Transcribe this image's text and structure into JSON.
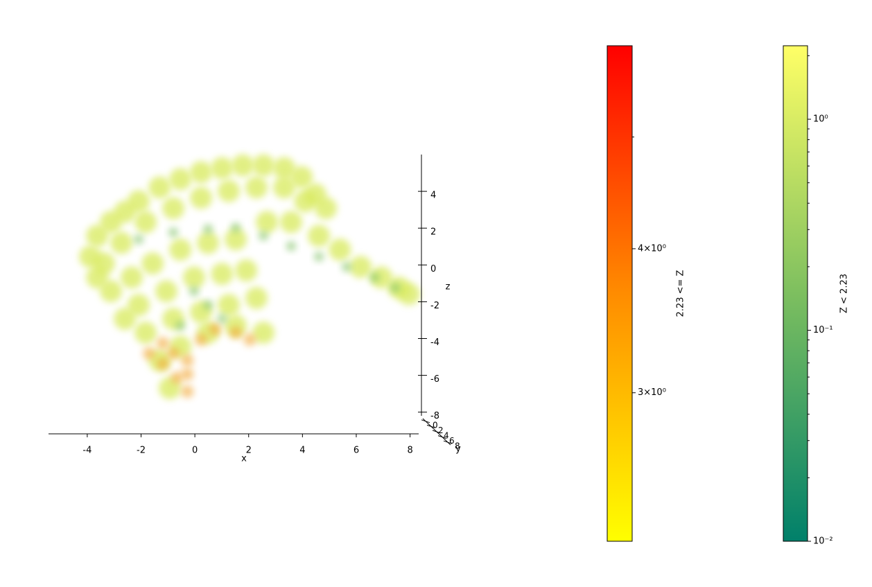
{
  "chart_data": [
    {
      "type": "scatter3d",
      "x_label": "x",
      "y_label": "y",
      "z_label": "z",
      "xlim": [
        -5.44,
        8.32
      ],
      "xticks": [
        -4,
        -2,
        0,
        2,
        4,
        6,
        8
      ],
      "zlim": [
        -8.2,
        6
      ],
      "zticks": [
        -8,
        -6,
        -4,
        -2,
        0,
        2,
        4
      ],
      "ylim": [
        -1,
        9
      ],
      "yticks": [
        0,
        2,
        4,
        6,
        8
      ],
      "series": [
        {
          "color": "#d8ea5c",
          "x": [
            -3.89,
            -3.63,
            -3.12,
            -2.6,
            -2.09,
            -1.31,
            -0.54,
            0.23,
            1.01,
            1.78,
            2.55,
            3.32,
            3.97,
            4.48,
            4.87,
            -3.38,
            -2.73,
            -1.83,
            -0.8,
            0.23,
            1.26,
            2.29,
            3.32,
            4.1,
            -3.12,
            -2.35,
            -1.57,
            -0.54,
            0.49,
            1.52,
            -2.09,
            -1.06,
            -0.03,
            1.01,
            1.91,
            -1.83,
            -0.8,
            0.23,
            1.26,
            2.29,
            -1.31,
            -0.54,
            0.49,
            1.52,
            2.55,
            -0.93,
            -2.6,
            -3.63,
            2.68,
            3.58,
            4.61,
            5.39,
            6.16,
            6.93,
            7.58,
            7.96
          ],
          "values": [
            0.45,
            1.58,
            2.33,
            2.89,
            3.46,
            4.21,
            4.66,
            5.04,
            5.26,
            5.41,
            5.41,
            5.26,
            4.77,
            3.83,
            3.08,
            0.08,
            1.2,
            2.33,
            3.08,
            3.65,
            4.02,
            4.21,
            4.21,
            3.46,
            -1.43,
            -0.68,
            0.08,
            0.83,
            1.2,
            1.39,
            -2.18,
            -1.43,
            -0.68,
            -0.49,
            -0.3,
            -3.68,
            -2.93,
            -2.56,
            -2.18,
            -1.8,
            -5.19,
            -4.44,
            -3.68,
            -3.31,
            -3.68,
            -6.69,
            -2.93,
            -0.68,
            2.33,
            2.33,
            1.58,
            0.83,
            -0.11,
            -0.68,
            -1.24,
            -1.58
          ]
        },
        {
          "color": "#7cbf5e",
          "x": [
            -2.09,
            -0.8,
            0.49,
            1.52,
            2.55,
            3.58,
            4.61,
            5.64,
            6.68,
            7.45,
            -0.03,
            0.49,
            -0.54,
            1.01
          ],
          "values": [
            1.39,
            1.77,
            1.95,
            2.03,
            1.58,
            1.02,
            0.45,
            -0.11,
            -0.68,
            -1.24,
            -1.43,
            -2.18,
            -3.31,
            -2.93
          ]
        },
        {
          "color": "#f2a530",
          "x": [
            -1.7,
            -1.19,
            -0.67,
            -0.28,
            -0.28,
            0.23,
            0.75,
            1.52,
            2.04,
            -0.28,
            -0.8,
            -1.19
          ],
          "values": [
            -4.81,
            -5.38,
            -6.13,
            -6.88,
            -5.19,
            -4.06,
            -3.5,
            -3.68,
            -4.06,
            -5.94,
            -4.81,
            -4.25
          ]
        }
      ]
    },
    {
      "type": "colorbar",
      "label": "2.23 <= Z",
      "scale": "log",
      "lim": [
        2.23,
        6.0
      ],
      "ticks": [
        {
          "value": 3,
          "label": "3×10⁰"
        },
        {
          "value": 4,
          "label": "4×10⁰"
        }
      ],
      "minor_ticks": [
        5
      ],
      "colors": [
        "#ffff00",
        "#ff8c00",
        "#ff0000"
      ]
    },
    {
      "type": "colorbar",
      "label": "Z < 2.23",
      "scale": "log",
      "lim": [
        0.01,
        2.23
      ],
      "ticks": [
        {
          "value": 0.01,
          "label": "10⁻²"
        },
        {
          "value": 0.1,
          "label": "10⁻¹"
        },
        {
          "value": 1,
          "label": "10⁰"
        }
      ],
      "minor_ticks": [
        0.02,
        0.03,
        0.04,
        0.05,
        0.06,
        0.07,
        0.08,
        0.09,
        0.2,
        0.3,
        0.4,
        0.5,
        0.6,
        0.7,
        0.8,
        0.9,
        2
      ],
      "colors": [
        "#00806a",
        "#7dbf5f",
        "#ffff66"
      ]
    }
  ]
}
